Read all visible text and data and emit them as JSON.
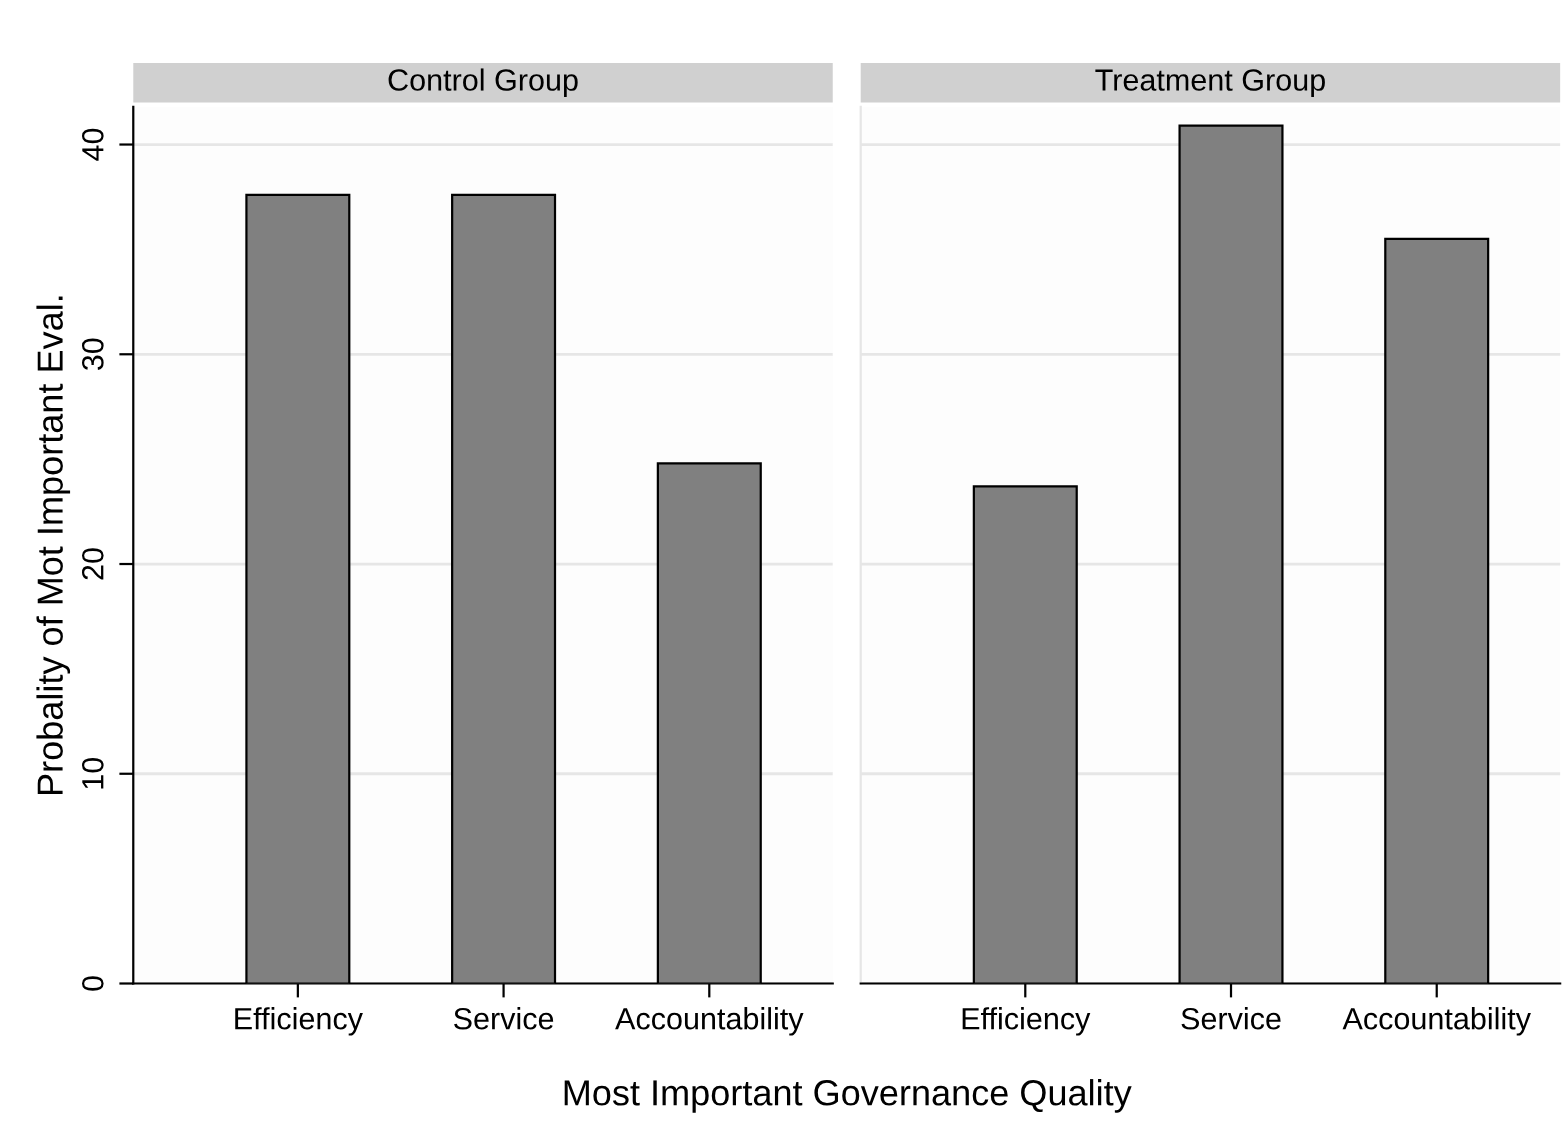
{
  "chart_data": [
    {
      "type": "bar",
      "title": "Control Group",
      "ylabel": "Probality of Mot Important Eval.",
      "xlabel": "Most Important Governance Quality",
      "categories": [
        "Efficiency",
        "Service",
        "Accountability"
      ],
      "values": [
        37.6,
        37.6,
        24.8
      ],
      "color": "#808080",
      "ylim": [
        0,
        41.8
      ],
      "yticks": [
        0,
        10,
        20,
        30,
        40
      ],
      "grid": "y"
    },
    {
      "type": "bar",
      "title": "Treatment Group",
      "categories": [
        "Efficiency",
        "Service",
        "Accountability"
      ],
      "values": [
        23.7,
        40.9,
        35.5
      ],
      "color": "#808080",
      "ylim": [
        0,
        41.8
      ],
      "yticks": [
        0,
        10,
        20,
        30,
        40
      ],
      "grid": "y",
      "tick_labels": "x"
    }
  ]
}
